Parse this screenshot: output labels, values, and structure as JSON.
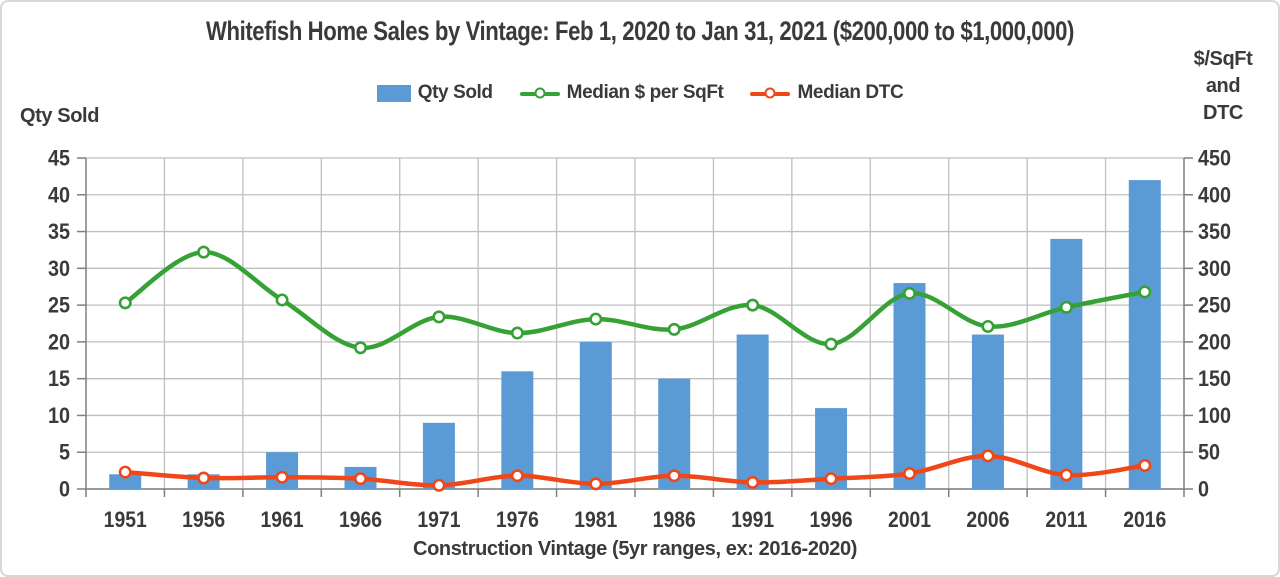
{
  "chart_data": {
    "type": "combo-bar-line",
    "title": "Whitefish Home Sales by Vintage: Feb 1, 2020 to Jan 31, 2021 ($200,000 to $1,000,000)",
    "categories": [
      "1951",
      "1956",
      "1961",
      "1966",
      "1971",
      "1976",
      "1981",
      "1986",
      "1991",
      "1996",
      "2001",
      "2006",
      "2011",
      "2016"
    ],
    "series": [
      {
        "name": "Qty Sold",
        "type": "bar",
        "axis": "left",
        "color": "#5B9BD5",
        "values": [
          2,
          2,
          5,
          3,
          9,
          16,
          20,
          15,
          21,
          11,
          28,
          21,
          34,
          42
        ]
      },
      {
        "name": "Median $ per SqFt",
        "type": "line",
        "axis": "right",
        "color": "#36A236",
        "smooth": true,
        "values": [
          253,
          322,
          257,
          192,
          234,
          212,
          231,
          217,
          250,
          197,
          266,
          221,
          247,
          268
        ]
      },
      {
        "name": "Median DTC",
        "type": "line",
        "axis": "right",
        "color": "#F04718",
        "smooth": true,
        "values": [
          23,
          15,
          16,
          14,
          5,
          18,
          7,
          18,
          9,
          14,
          21,
          45,
          19,
          32
        ]
      }
    ],
    "left_axis": {
      "title": "Qty Sold",
      "min": 0,
      "max": 45,
      "step": 5
    },
    "right_axis": {
      "title": "$/SqFt\nand\nDTC",
      "min": 0,
      "max": 450,
      "step": 50
    },
    "x_axis": {
      "title": "Construction Vintage (5yr ranges, ex: 2016-2020)"
    },
    "grid": true,
    "legend_position": "top"
  },
  "style_colors": {
    "gridline": "#BFBFBF",
    "axis_line": "#7F7F7F",
    "text": "#3A3A3A",
    "frame_border": "#D8D8D8",
    "background": "#FFFFFF"
  }
}
